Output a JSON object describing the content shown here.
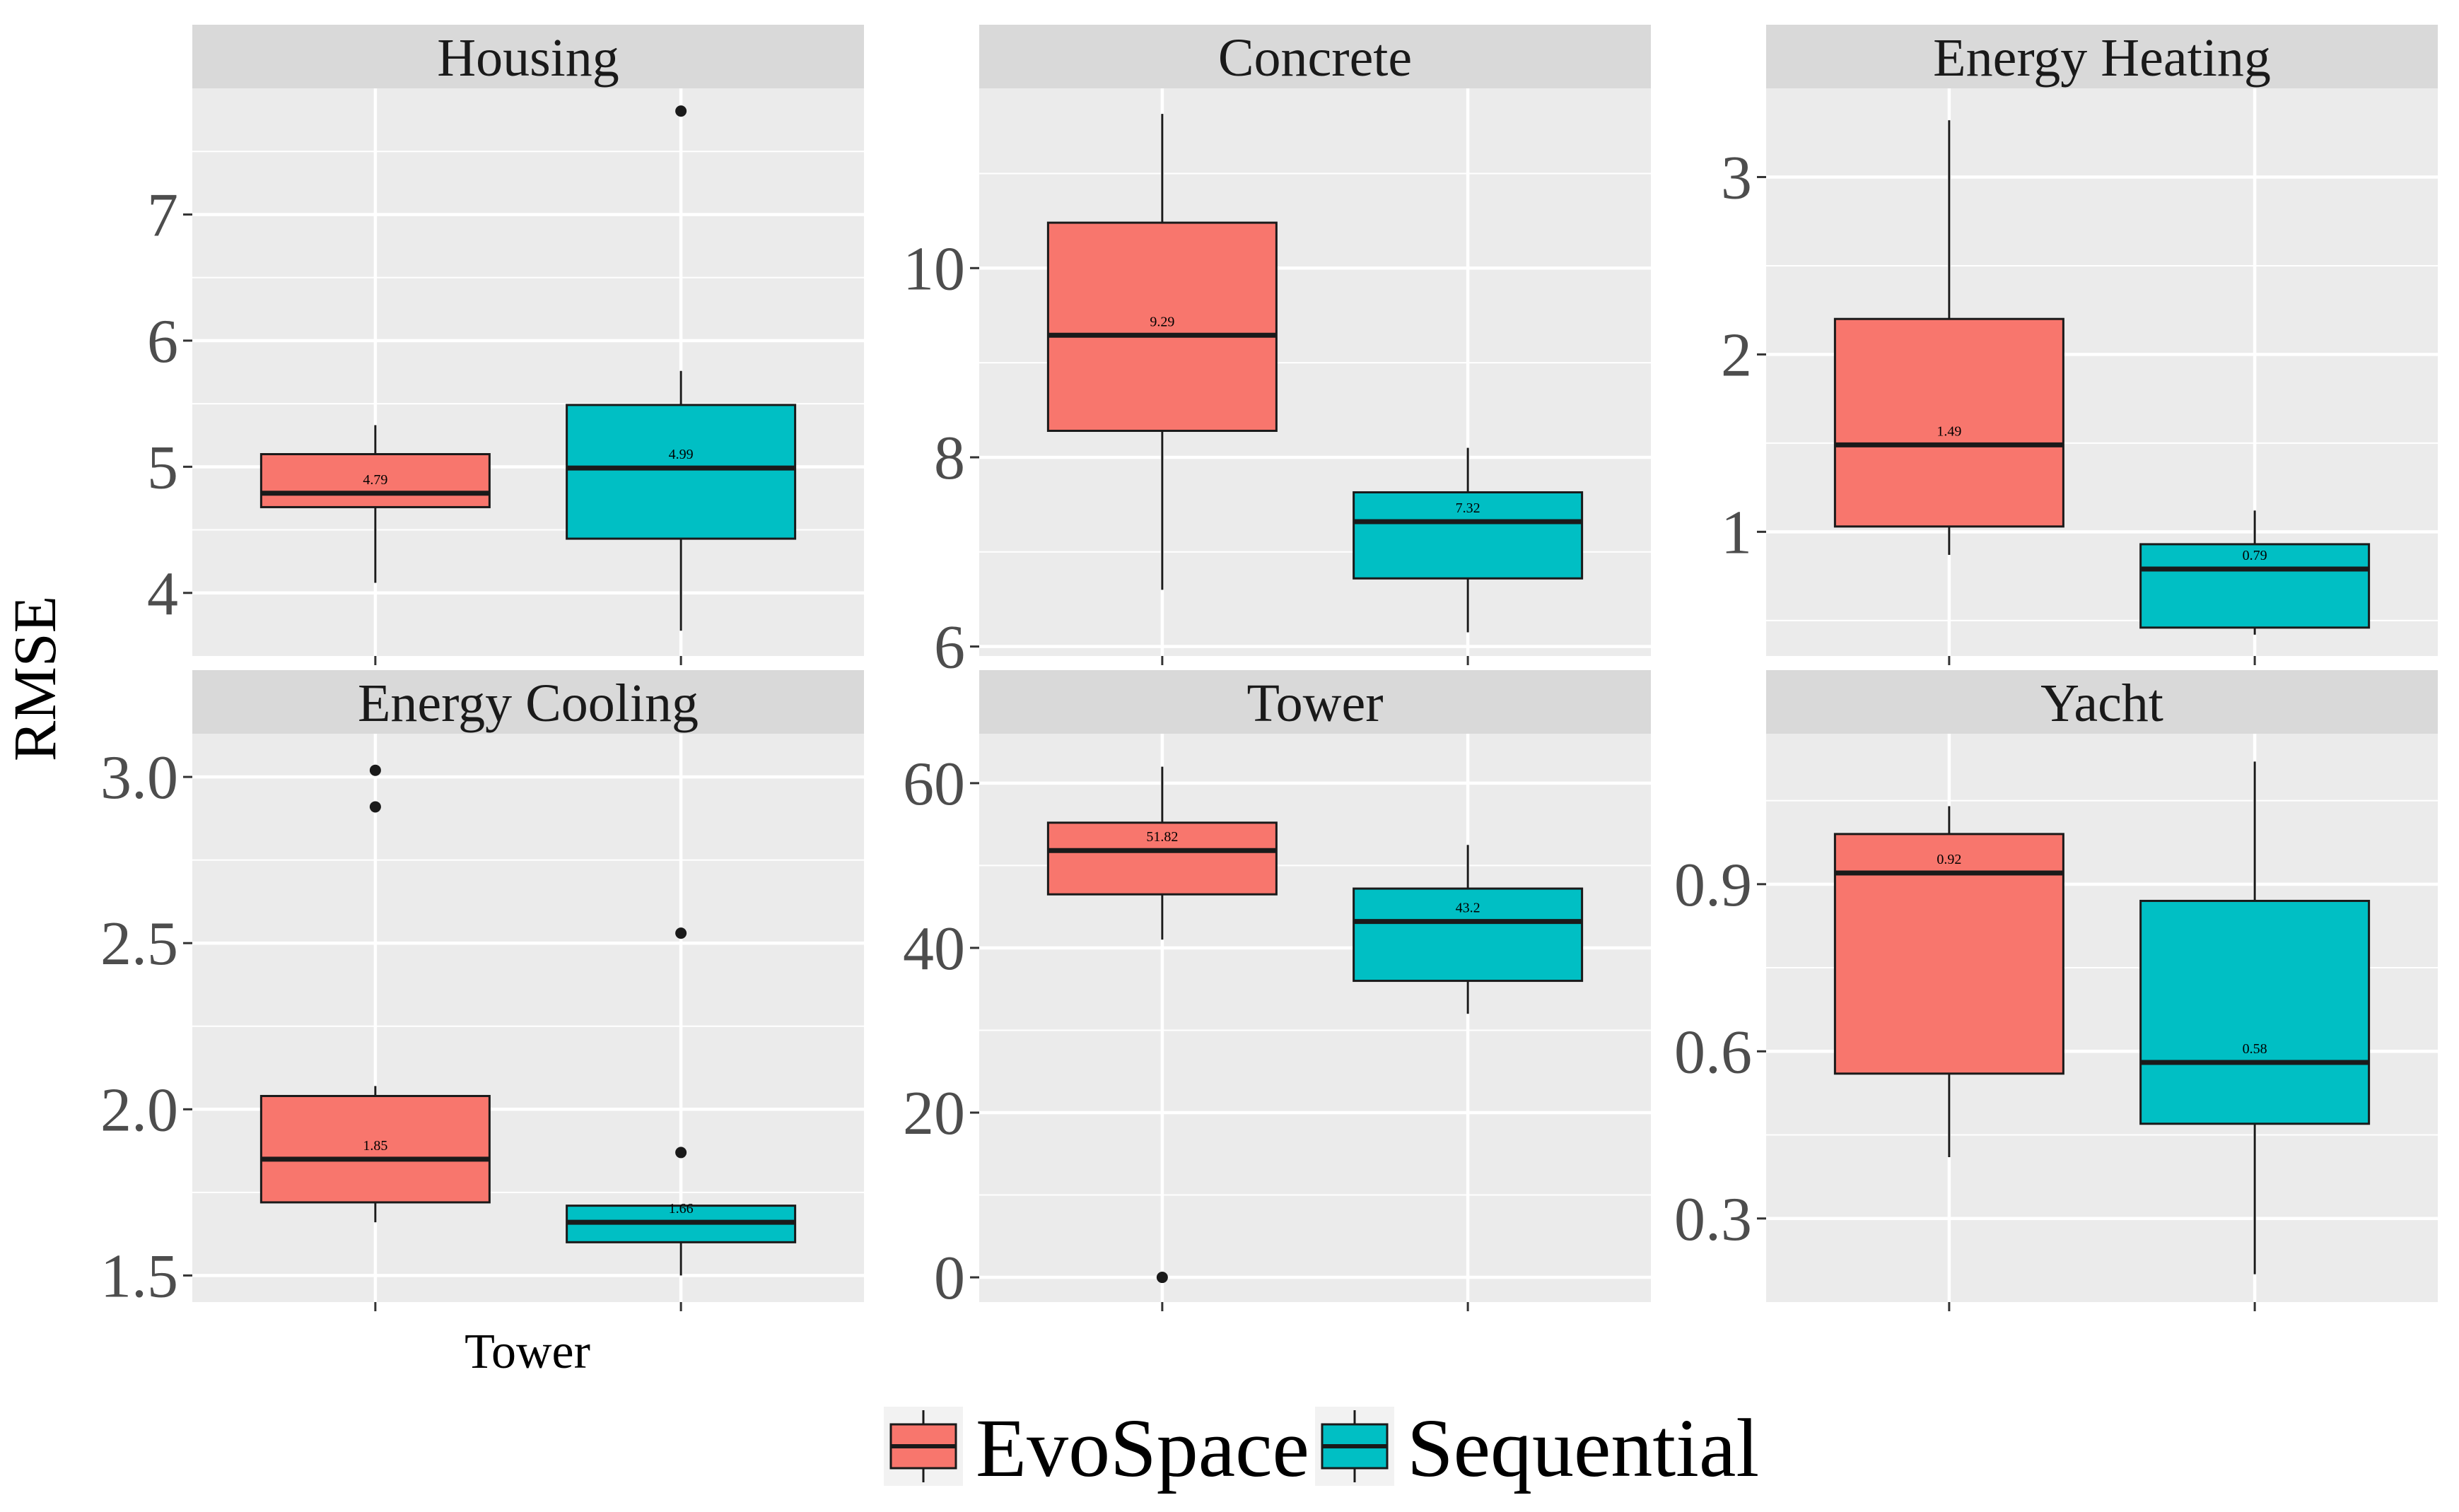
{
  "figure": {
    "ylabel": "RMSE",
    "xlabel": "Tower",
    "panel_background": "#ebebeb",
    "strip_background": "#d9d9d9",
    "grid_color": "#ffffff",
    "legend": {
      "position": "bottom",
      "items": [
        {
          "label": "EvoSpace",
          "color": "#f8766d"
        },
        {
          "label": "Sequential",
          "color": "#00bfc4"
        }
      ]
    }
  },
  "chart_data": [
    {
      "type": "box",
      "title": "Housing",
      "ylim": [
        3.5,
        8.0
      ],
      "yticks": [
        4,
        5,
        6,
        7
      ],
      "ytick_labels": [
        "4",
        "5",
        "6",
        "7"
      ],
      "series": [
        {
          "name": "EvoSpace",
          "color": "#f8766d",
          "min": 4.08,
          "q1": 4.68,
          "median": 4.79,
          "q3": 5.1,
          "max": 5.33,
          "outliers": [],
          "median_label": "4.79"
        },
        {
          "name": "Sequential",
          "color": "#00bfc4",
          "min": 3.7,
          "q1": 4.43,
          "median": 4.99,
          "q3": 5.49,
          "max": 5.76,
          "outliers": [
            7.82
          ],
          "median_label": "4.99"
        }
      ]
    },
    {
      "type": "box",
      "title": "Concrete",
      "ylim": [
        5.9,
        11.9
      ],
      "yticks": [
        6,
        8,
        10
      ],
      "ytick_labels": [
        "6",
        "8",
        "10"
      ],
      "series": [
        {
          "name": "EvoSpace",
          "color": "#f8766d",
          "min": 6.6,
          "q1": 8.28,
          "median": 9.29,
          "q3": 10.48,
          "max": 11.63,
          "outliers": [],
          "median_label": "9.29"
        },
        {
          "name": "Sequential",
          "color": "#00bfc4",
          "min": 6.15,
          "q1": 6.72,
          "median": 7.32,
          "q3": 7.63,
          "max": 8.1,
          "outliers": [],
          "median_label": "7.32"
        }
      ]
    },
    {
      "type": "box",
      "title": "Energy Heating",
      "ylim": [
        0.3,
        3.5
      ],
      "yticks": [
        1,
        2,
        3
      ],
      "ytick_labels": [
        "1",
        "2",
        "3"
      ],
      "series": [
        {
          "name": "EvoSpace",
          "color": "#f8766d",
          "min": 0.87,
          "q1": 1.03,
          "median": 1.49,
          "q3": 2.2,
          "max": 3.32,
          "outliers": [],
          "median_label": "1.49"
        },
        {
          "name": "Sequential",
          "color": "#00bfc4",
          "min": 0.42,
          "q1": 0.46,
          "median": 0.79,
          "q3": 0.93,
          "max": 1.12,
          "outliers": [],
          "median_label": "0.79"
        }
      ]
    },
    {
      "type": "box",
      "title": "Energy Cooling",
      "ylim": [
        1.42,
        3.13
      ],
      "yticks": [
        1.5,
        2.0,
        2.5,
        3.0
      ],
      "ytick_labels": [
        "1.5",
        "2.0",
        "2.5",
        "3.0"
      ],
      "series": [
        {
          "name": "EvoSpace",
          "color": "#f8766d",
          "min": 1.66,
          "q1": 1.72,
          "median": 1.85,
          "q3": 2.04,
          "max": 2.07,
          "outliers": [
            2.91,
            3.02
          ],
          "median_label": "1.85"
        },
        {
          "name": "Sequential",
          "color": "#00bfc4",
          "min": 1.5,
          "q1": 1.6,
          "median": 1.66,
          "q3": 1.71,
          "max": 1.71,
          "outliers": [
            1.87,
            2.53
          ],
          "median_label": "1.66"
        }
      ]
    },
    {
      "type": "box",
      "title": "Tower",
      "ylim": [
        -3,
        66
      ],
      "yticks": [
        0,
        20,
        40,
        60
      ],
      "ytick_labels": [
        "0",
        "20",
        "40",
        "60"
      ],
      "series": [
        {
          "name": "EvoSpace",
          "color": "#f8766d",
          "min": 41,
          "q1": 46.5,
          "median": 51.82,
          "q3": 55.2,
          "max": 62,
          "outliers": [
            0
          ],
          "median_label": "51.82"
        },
        {
          "name": "Sequential",
          "color": "#00bfc4",
          "min": 32,
          "q1": 36,
          "median": 43.2,
          "q3": 47.2,
          "max": 52.5,
          "outliers": [],
          "median_label": "43.2"
        }
      ]
    },
    {
      "type": "box",
      "title": "Yacht",
      "ylim": [
        0.15,
        1.17
      ],
      "yticks": [
        0.3,
        0.6,
        0.9
      ],
      "ytick_labels": [
        "0.3",
        "0.6",
        "0.9"
      ],
      "series": [
        {
          "name": "EvoSpace",
          "color": "#f8766d",
          "min": 0.41,
          "q1": 0.56,
          "median": 0.92,
          "q3": 0.99,
          "max": 1.04,
          "outliers": [],
          "median_label": "0.92"
        },
        {
          "name": "Sequential",
          "color": "#00bfc4",
          "min": 0.2,
          "q1": 0.47,
          "median": 0.58,
          "q3": 0.87,
          "max": 1.12,
          "outliers": [],
          "median_label": "0.58"
        }
      ]
    }
  ]
}
